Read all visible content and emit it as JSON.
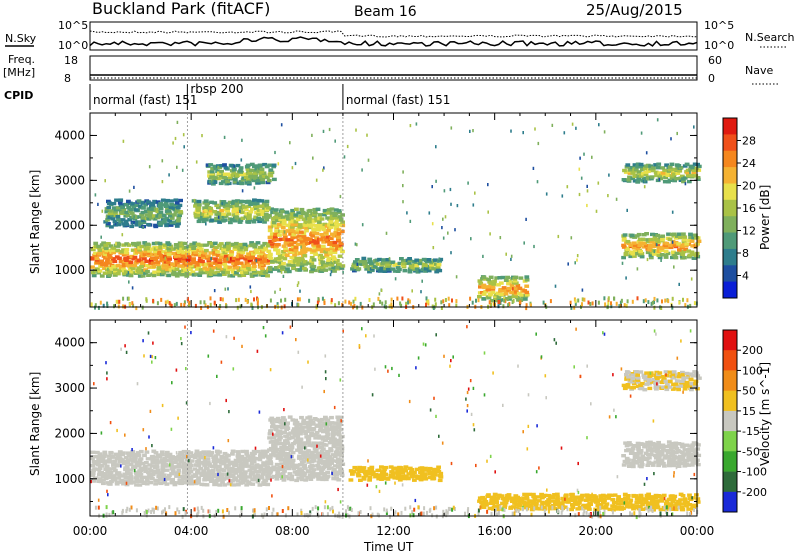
{
  "header": {
    "station": "Buckland Park (fitACF)",
    "beam": "Beam 16",
    "date": "25/Aug/2015"
  },
  "strip": {
    "nsky_label": "N.Sky",
    "nsearch_label": "N.Search",
    "noise_ticks_left": [
      "10^5",
      "10^0"
    ],
    "noise_ticks_right": [
      "10^5",
      "10^0"
    ],
    "freq_label": "Freq.",
    "freq_unit": "[MHz]",
    "freq_ticks": [
      "18",
      "8"
    ],
    "nave_label": "Nave",
    "nave_ticks": [
      "60",
      "0"
    ],
    "cpid_label": "CPID",
    "cpid_segments": [
      {
        "label": "normal (fast) 151",
        "start_h": 0,
        "end_h": 3.85
      },
      {
        "label": "rbsp 200",
        "start_h": 3.85,
        "end_h": 10.0
      },
      {
        "label": "normal (fast) 151",
        "start_h": 10.0,
        "end_h": 24.0
      }
    ]
  },
  "axes": {
    "ylabel": "Slant Range [km]",
    "xlabel": "Time UT",
    "yticks": [
      "1000",
      "2000",
      "3000",
      "4000"
    ],
    "xticks": [
      "00:00",
      "04:00",
      "08:00",
      "12:00",
      "16:00",
      "20:00",
      "00:00"
    ]
  },
  "chart_data": [
    {
      "type": "heatmap",
      "panel": "power",
      "x_range_h": [
        0,
        24
      ],
      "y_range_km": [
        180,
        4500
      ],
      "colorbar": {
        "label": "Power [dB]",
        "ticks": [
          "28",
          "24",
          "20",
          "16",
          "12",
          "8",
          "4"
        ],
        "range": [
          0,
          32
        ],
        "colors": [
          "#0a1fd6",
          "#1e4fa0",
          "#2e7d8c",
          "#4f9a78",
          "#7fb05c",
          "#a9c246",
          "#e8e04a",
          "#f5b232",
          "#f5871e",
          "#f0501a",
          "#e01a10"
        ]
      },
      "echo_regions": [
        {
          "t0": 0.0,
          "t1": 7.0,
          "r0": 900,
          "r1": 1650,
          "level_db": 28
        },
        {
          "t0": 7.0,
          "t1": 9.9,
          "r0": 1000,
          "r1": 2400,
          "level_db": 26
        },
        {
          "t0": 0.5,
          "t1": 3.5,
          "r0": 2000,
          "r1": 2600,
          "level_db": 14
        },
        {
          "t0": 4.0,
          "t1": 7.0,
          "r0": 2100,
          "r1": 2600,
          "level_db": 20
        },
        {
          "t0": 4.5,
          "t1": 7.2,
          "r0": 2950,
          "r1": 3400,
          "level_db": 18
        },
        {
          "t0": 10.2,
          "t1": 13.8,
          "r0": 1000,
          "r1": 1300,
          "level_db": 18
        },
        {
          "t0": 15.3,
          "t1": 17.2,
          "r0": 350,
          "r1": 900,
          "level_db": 26
        },
        {
          "t0": 21.0,
          "t1": 24.0,
          "r0": 1300,
          "r1": 1850,
          "level_db": 26
        },
        {
          "t0": 21.0,
          "t1": 24.0,
          "r0": 3000,
          "r1": 3400,
          "level_db": 20
        }
      ]
    },
    {
      "type": "heatmap",
      "panel": "velocity",
      "x_range_h": [
        0,
        24
      ],
      "y_range_km": [
        180,
        4500
      ],
      "colorbar": {
        "label": "Velocity [m s^-1]",
        "ticks": [
          "200",
          "100",
          "50",
          "15",
          "-15",
          "-50",
          "-100",
          "-200"
        ],
        "range": [
          -250,
          250
        ],
        "colors": [
          "#1a2ad8",
          "#2e6b3a",
          "#39a82e",
          "#7ed34a",
          "#c8c8c0",
          "#f0c020",
          "#f08c18",
          "#f05010",
          "#e01010"
        ]
      },
      "echo_regions": [
        {
          "t0": 0.0,
          "t1": 7.0,
          "r0": 900,
          "r1": 1650,
          "vel": 0
        },
        {
          "t0": 7.0,
          "t1": 9.9,
          "r0": 1000,
          "r1": 2400,
          "vel": 0
        },
        {
          "t0": 10.2,
          "t1": 13.8,
          "r0": 1000,
          "r1": 1300,
          "vel": 60
        },
        {
          "t0": 15.3,
          "t1": 24.0,
          "r0": 350,
          "r1": 700,
          "vel": 60
        },
        {
          "t0": 21.0,
          "t1": 24.0,
          "r0": 1300,
          "r1": 1850,
          "vel": 0
        },
        {
          "t0": 21.0,
          "t1": 24.0,
          "r0": 3000,
          "r1": 3400,
          "vel": 30
        }
      ]
    }
  ]
}
